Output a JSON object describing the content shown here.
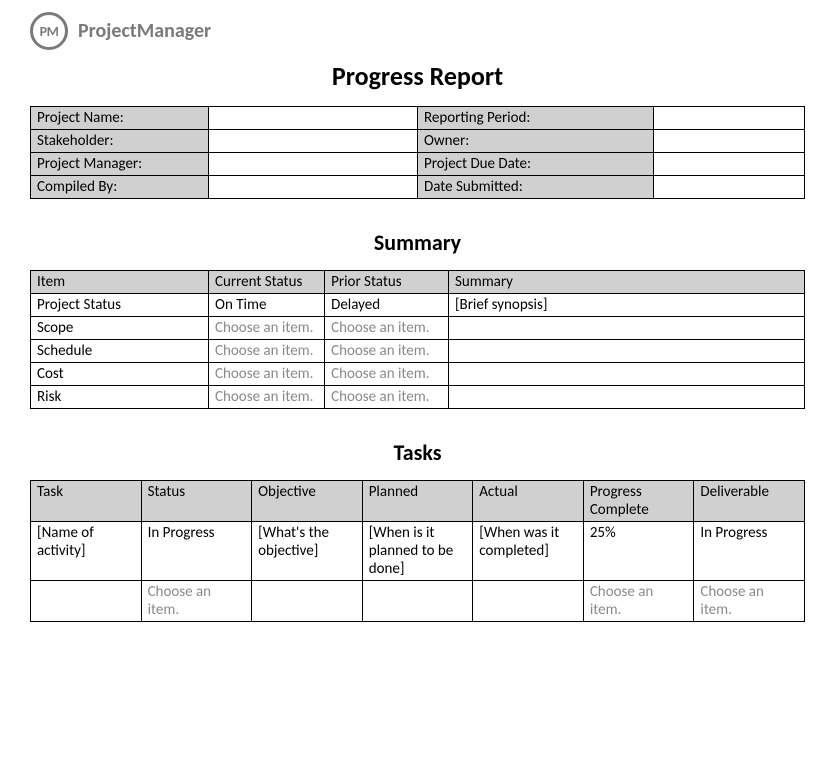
{
  "brand": {
    "logo_text": "PM",
    "name": "ProjectManager"
  },
  "title": "Progress Report",
  "colors": {
    "header_bg": "#d0d0d0",
    "border": "#000000",
    "placeholder": "#8a8a8a",
    "body_text": "#000000",
    "brand_gray": "#7a7a7a"
  },
  "meta": {
    "left_labels": [
      "Project Name:",
      "Stakeholder:",
      "Project Manager:",
      "Compiled By:"
    ],
    "left_values": [
      "",
      "",
      "",
      ""
    ],
    "right_labels": [
      "Reporting Period:",
      "Owner:",
      "Project Due Date:",
      "Date Submitted:"
    ],
    "right_values": [
      "",
      "",
      "",
      ""
    ]
  },
  "summary": {
    "heading": "Summary",
    "columns": [
      "Item",
      "Current Status",
      "Prior Status",
      "Summary"
    ],
    "col_widths_pct": [
      23,
      15,
      16,
      46
    ],
    "rows": [
      {
        "item": "Project Status",
        "current": "On Time",
        "current_placeholder": false,
        "prior": "Delayed",
        "prior_placeholder": false,
        "summary": "[Brief synopsis]"
      },
      {
        "item": "Scope",
        "current": "Choose an item.",
        "current_placeholder": true,
        "prior": "Choose an item.",
        "prior_placeholder": true,
        "summary": ""
      },
      {
        "item": "Schedule",
        "current": "Choose an item.",
        "current_placeholder": true,
        "prior": "Choose an item.",
        "prior_placeholder": true,
        "summary": ""
      },
      {
        "item": "Cost",
        "current": "Choose an item.",
        "current_placeholder": true,
        "prior": "Choose an item.",
        "prior_placeholder": true,
        "summary": ""
      },
      {
        "item": "Risk",
        "current": "Choose an item.",
        "current_placeholder": true,
        "prior": "Choose an item.",
        "prior_placeholder": true,
        "summary": ""
      }
    ]
  },
  "tasks": {
    "heading": "Tasks",
    "columns": [
      "Task",
      "Status",
      "Objective",
      "Planned",
      "Actual",
      "Progress Complete",
      "Deliverable"
    ],
    "rows": [
      {
        "cells": [
          {
            "text": "[Name of activity]",
            "placeholder": false
          },
          {
            "text": "In Progress",
            "placeholder": false
          },
          {
            "text": "[What's the objective]",
            "placeholder": false
          },
          {
            "text": "[When is it planned to be done]",
            "placeholder": false
          },
          {
            "text": "[When was it completed]",
            "placeholder": false
          },
          {
            "text": "25%",
            "placeholder": false
          },
          {
            "text": "In Progress",
            "placeholder": false
          }
        ]
      },
      {
        "cells": [
          {
            "text": "",
            "placeholder": false
          },
          {
            "text": "Choose an item.",
            "placeholder": true
          },
          {
            "text": "",
            "placeholder": false
          },
          {
            "text": "",
            "placeholder": false
          },
          {
            "text": "",
            "placeholder": false
          },
          {
            "text": "Choose an item.",
            "placeholder": true
          },
          {
            "text": "Choose an item.",
            "placeholder": true
          }
        ]
      }
    ]
  }
}
